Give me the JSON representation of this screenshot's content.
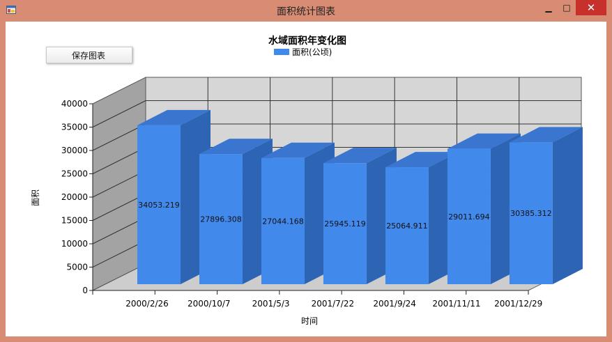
{
  "window": {
    "title": "面积统计图表",
    "controls": {
      "minimize": "▁",
      "maximize": "□",
      "close": "✕"
    },
    "icon": "app-window-icon"
  },
  "toolbar": {
    "save_label": "保存图表"
  },
  "colors": {
    "bar_front": "#4289ec",
    "bar_top": "#3a76cf",
    "bar_side": "#2d64b4",
    "wall_back": "#d6d6d6",
    "wall_left": "#a3a3a3",
    "floor": "#cdcdcd",
    "close_button": "#c7302b",
    "window_frame": "#d98c74"
  },
  "chart_data": {
    "type": "bar",
    "title": "水域面积年变化图",
    "legend": {
      "position": "top-center",
      "entries": [
        "面积(公顷)"
      ]
    },
    "xlabel": "时间",
    "ylabel": "面积",
    "ylim": [
      0,
      40000
    ],
    "yticks": [
      0,
      5000,
      10000,
      15000,
      20000,
      25000,
      30000,
      35000,
      40000
    ],
    "grid": true,
    "three_d": true,
    "categories": [
      "2000/2/26",
      "2000/10/7",
      "2001/5/3",
      "2001/7/22",
      "2001/9/24",
      "2001/11/11",
      "2001/12/29"
    ],
    "series": [
      {
        "name": "面积(公顷)",
        "values": [
          34053.219,
          27896.308,
          27044.168,
          25945.119,
          25064.911,
          29011.694,
          30385.312
        ],
        "labels": [
          "34053.219",
          "27896.308",
          "27044.168",
          "25945.119",
          "25064.911",
          "29011.694",
          "30385.312"
        ]
      }
    ]
  }
}
